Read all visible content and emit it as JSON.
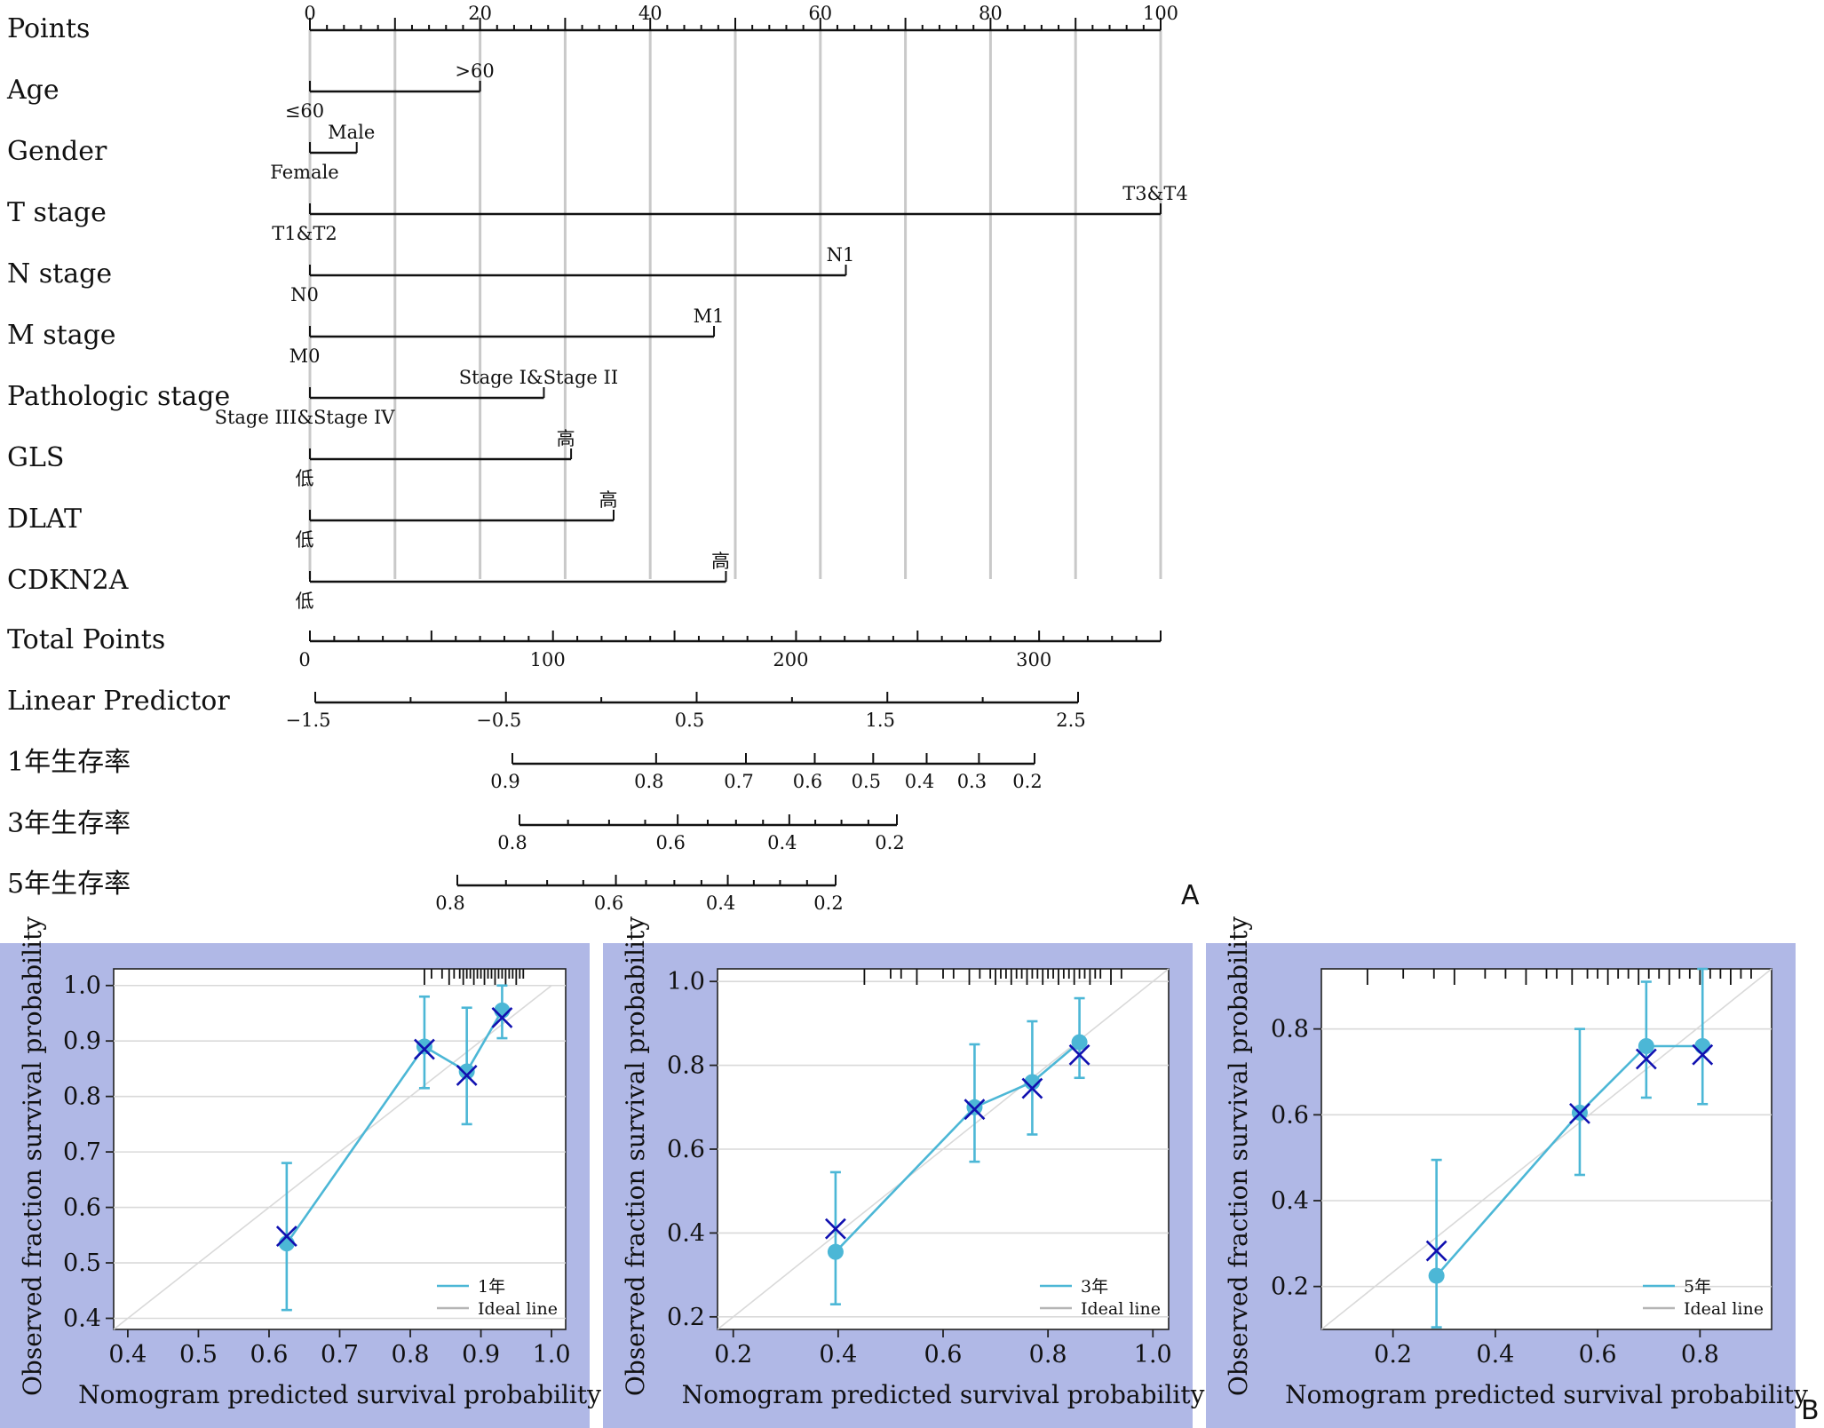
{
  "nomogram": {
    "panel_letter": "A",
    "points": {
      "label": "Points",
      "ticks": [
        0,
        20,
        40,
        60,
        80,
        100
      ]
    },
    "variables": [
      {
        "label": "Age",
        "levels": [
          {
            "name": "≤60",
            "points": 0
          },
          {
            "name": ">60",
            "points": 20
          }
        ]
      },
      {
        "label": "Gender",
        "levels": [
          {
            "name": "Female",
            "points": 0
          },
          {
            "name": "Male",
            "points": 5.5
          }
        ]
      },
      {
        "label": "T stage",
        "levels": [
          {
            "name": "T1&T2",
            "points": 0
          },
          {
            "name": "T3&T4",
            "points": 100
          }
        ]
      },
      {
        "label": "N stage",
        "levels": [
          {
            "name": "N0",
            "points": 0
          },
          {
            "name": "N1",
            "points": 63
          }
        ]
      },
      {
        "label": "M stage",
        "levels": [
          {
            "name": "M0",
            "points": 0
          },
          {
            "name": "M1",
            "points": 47.5
          }
        ]
      },
      {
        "label": "Pathologic stage",
        "levels": [
          {
            "name": "Stage III&Stage IV",
            "points": 0
          },
          {
            "name": "Stage I&Stage II",
            "points": 27.5
          }
        ]
      },
      {
        "label": "GLS",
        "levels": [
          {
            "name": "低",
            "points": 0
          },
          {
            "name": "高",
            "points": 30.7
          }
        ]
      },
      {
        "label": "DLAT",
        "levels": [
          {
            "name": "低",
            "points": 0
          },
          {
            "name": "高",
            "points": 35.7
          }
        ]
      },
      {
        "label": "CDKN2A",
        "levels": [
          {
            "name": "低",
            "points": 0
          },
          {
            "name": "高",
            "points": 48.9
          }
        ]
      }
    ],
    "total_points": {
      "label": "Total Points",
      "ticks": [
        0,
        100,
        200,
        300
      ],
      "max": 350
    },
    "linear_predictor": {
      "label": "Linear Predictor",
      "ticks": [
        -1.5,
        -0.5,
        0.5,
        1.5,
        2.5
      ],
      "tick_labels": [
        "−1.5",
        "−0.5",
        "0.5",
        "1.5",
        "2.5"
      ]
    },
    "survival_scales": [
      {
        "label": "1年生存率",
        "ticks": [
          0.9,
          0.8,
          0.7,
          0.6,
          0.5,
          0.4,
          0.3,
          0.2
        ],
        "tick_labels": [
          "0.9",
          "0.8",
          "0.7",
          "0.6",
          "0.5",
          "0.4",
          "0.3",
          "0.2"
        ]
      },
      {
        "label": "3年生存率",
        "ticks": [
          0.8,
          0.6,
          0.4,
          0.2
        ],
        "tick_labels": [
          "0.8",
          "0.6",
          "0.4",
          "0.2"
        ]
      },
      {
        "label": "5年生存率",
        "ticks": [
          0.8,
          0.6,
          0.4,
          0.2
        ],
        "tick_labels": [
          "0.8",
          "0.6",
          "0.4",
          "0.2"
        ]
      }
    ]
  },
  "calibration": {
    "panel_letter": "B",
    "xlabel": "Nomogram predicted survival probability",
    "ylabel": "Observed fraction survival probability",
    "ideal_label": "Ideal line"
  },
  "chart_data": [
    {
      "type": "line",
      "title": "",
      "xlabel": "Nomogram predicted survival probability",
      "ylabel": "Observed fraction survival probability",
      "xlim": [
        0.38,
        1.02
      ],
      "ylim": [
        0.38,
        1.03
      ],
      "xticks": [
        0.4,
        0.5,
        0.6,
        0.7,
        0.8,
        0.9,
        1.0
      ],
      "xtick_labels": [
        "0.4",
        "0.5",
        "0.6",
        "0.7",
        "0.8",
        "0.9",
        "1.0"
      ],
      "yticks": [
        0.4,
        0.5,
        0.6,
        0.7,
        0.8,
        0.9,
        1.0
      ],
      "ytick_labels": [
        "0.4",
        "0.5",
        "0.6",
        "0.7",
        "0.8",
        "0.9",
        "1.0"
      ],
      "grid": true,
      "legend": "bottom-right",
      "series": [
        {
          "name": "1年",
          "x": [
            0.625,
            0.82,
            0.88,
            0.93
          ],
          "y": [
            0.535,
            0.89,
            0.845,
            0.955
          ],
          "err_low": [
            0.415,
            0.815,
            0.75,
            0.905
          ],
          "err_high": [
            0.68,
            0.98,
            0.96,
            1.0
          ]
        },
        {
          "name": "Ideal line",
          "x": [
            0.38,
            1.0
          ],
          "y": [
            0.38,
            1.0
          ]
        }
      ],
      "x_marks": {
        "x": [
          0.625,
          0.82,
          0.88,
          0.93
        ],
        "y": [
          0.548,
          0.885,
          0.838,
          0.942
        ]
      },
      "rug": [
        0.82,
        0.83,
        0.845,
        0.855,
        0.862,
        0.87,
        0.875,
        0.88,
        0.885,
        0.89,
        0.895,
        0.9,
        0.905,
        0.91,
        0.915,
        0.92,
        0.925,
        0.93,
        0.935,
        0.94,
        0.945,
        0.95,
        0.955,
        0.96
      ]
    },
    {
      "type": "line",
      "title": "",
      "xlabel": "Nomogram predicted survival probability",
      "ylabel": "Observed fraction survival probability",
      "xlim": [
        0.17,
        1.03
      ],
      "ylim": [
        0.17,
        1.03
      ],
      "xticks": [
        0.2,
        0.4,
        0.6,
        0.8,
        1.0
      ],
      "xtick_labels": [
        "0.2",
        "0.4",
        "0.6",
        "0.8",
        "1.0"
      ],
      "yticks": [
        0.2,
        0.4,
        0.6,
        0.8,
        1.0
      ],
      "ytick_labels": [
        "0.2",
        "0.4",
        "0.6",
        "0.8",
        "1.0"
      ],
      "grid": true,
      "legend": "bottom-right",
      "series": [
        {
          "name": "3年",
          "x": [
            0.395,
            0.66,
            0.77,
            0.86
          ],
          "y": [
            0.355,
            0.7,
            0.76,
            0.855
          ],
          "err_low": [
            0.23,
            0.57,
            0.635,
            0.77
          ],
          "err_high": [
            0.545,
            0.85,
            0.905,
            0.96
          ]
        },
        {
          "name": "Ideal line",
          "x": [
            0.17,
            1.03
          ],
          "y": [
            0.17,
            1.03
          ]
        }
      ],
      "x_marks": {
        "x": [
          0.395,
          0.66,
          0.77,
          0.86
        ],
        "y": [
          0.41,
          0.695,
          0.745,
          0.825
        ]
      },
      "rug": [
        0.45,
        0.5,
        0.52,
        0.55,
        0.6,
        0.62,
        0.65,
        0.67,
        0.69,
        0.7,
        0.71,
        0.72,
        0.73,
        0.74,
        0.75,
        0.76,
        0.77,
        0.78,
        0.79,
        0.8,
        0.81,
        0.82,
        0.83,
        0.84,
        0.85,
        0.86,
        0.87,
        0.88,
        0.89,
        0.9,
        0.92,
        0.94
      ]
    },
    {
      "type": "line",
      "title": "",
      "xlabel": "Nomogram predicted survival probability",
      "ylabel": "Observed fraction survival probability",
      "xlim": [
        0.06,
        0.94
      ],
      "ylim": [
        0.1,
        0.94
      ],
      "xticks": [
        0.2,
        0.4,
        0.6,
        0.8
      ],
      "xtick_labels": [
        "0.2",
        "0.4",
        "0.6",
        "0.8"
      ],
      "yticks": [
        0.2,
        0.4,
        0.6,
        0.8
      ],
      "ytick_labels": [
        "0.2",
        "0.4",
        "0.6",
        "0.8"
      ],
      "grid": true,
      "legend": "bottom-right",
      "series": [
        {
          "name": "5年",
          "x": [
            0.285,
            0.565,
            0.695,
            0.805
          ],
          "y": [
            0.225,
            0.605,
            0.76,
            0.76
          ],
          "err_low": [
            0.105,
            0.46,
            0.64,
            0.625
          ],
          "err_high": [
            0.495,
            0.8,
            0.91,
            0.94
          ]
        },
        {
          "name": "Ideal line",
          "x": [
            0.06,
            0.94
          ],
          "y": [
            0.06,
            0.94
          ]
        }
      ],
      "x_marks": {
        "x": [
          0.285,
          0.565,
          0.695,
          0.805
        ],
        "y": [
          0.283,
          0.603,
          0.73,
          0.74
        ]
      },
      "rug": [
        0.15,
        0.22,
        0.28,
        0.32,
        0.38,
        0.42,
        0.46,
        0.5,
        0.52,
        0.55,
        0.58,
        0.6,
        0.62,
        0.64,
        0.66,
        0.68,
        0.7,
        0.72,
        0.74,
        0.76,
        0.78,
        0.8,
        0.82,
        0.84,
        0.86,
        0.88,
        0.9
      ]
    }
  ],
  "colors": {
    "series": "#4cb7d6",
    "x_mark": "#1010b0",
    "panel_bg": "#b0b8e6",
    "grid": "#c9c9c9",
    "ideal": "#b5b5b5"
  }
}
